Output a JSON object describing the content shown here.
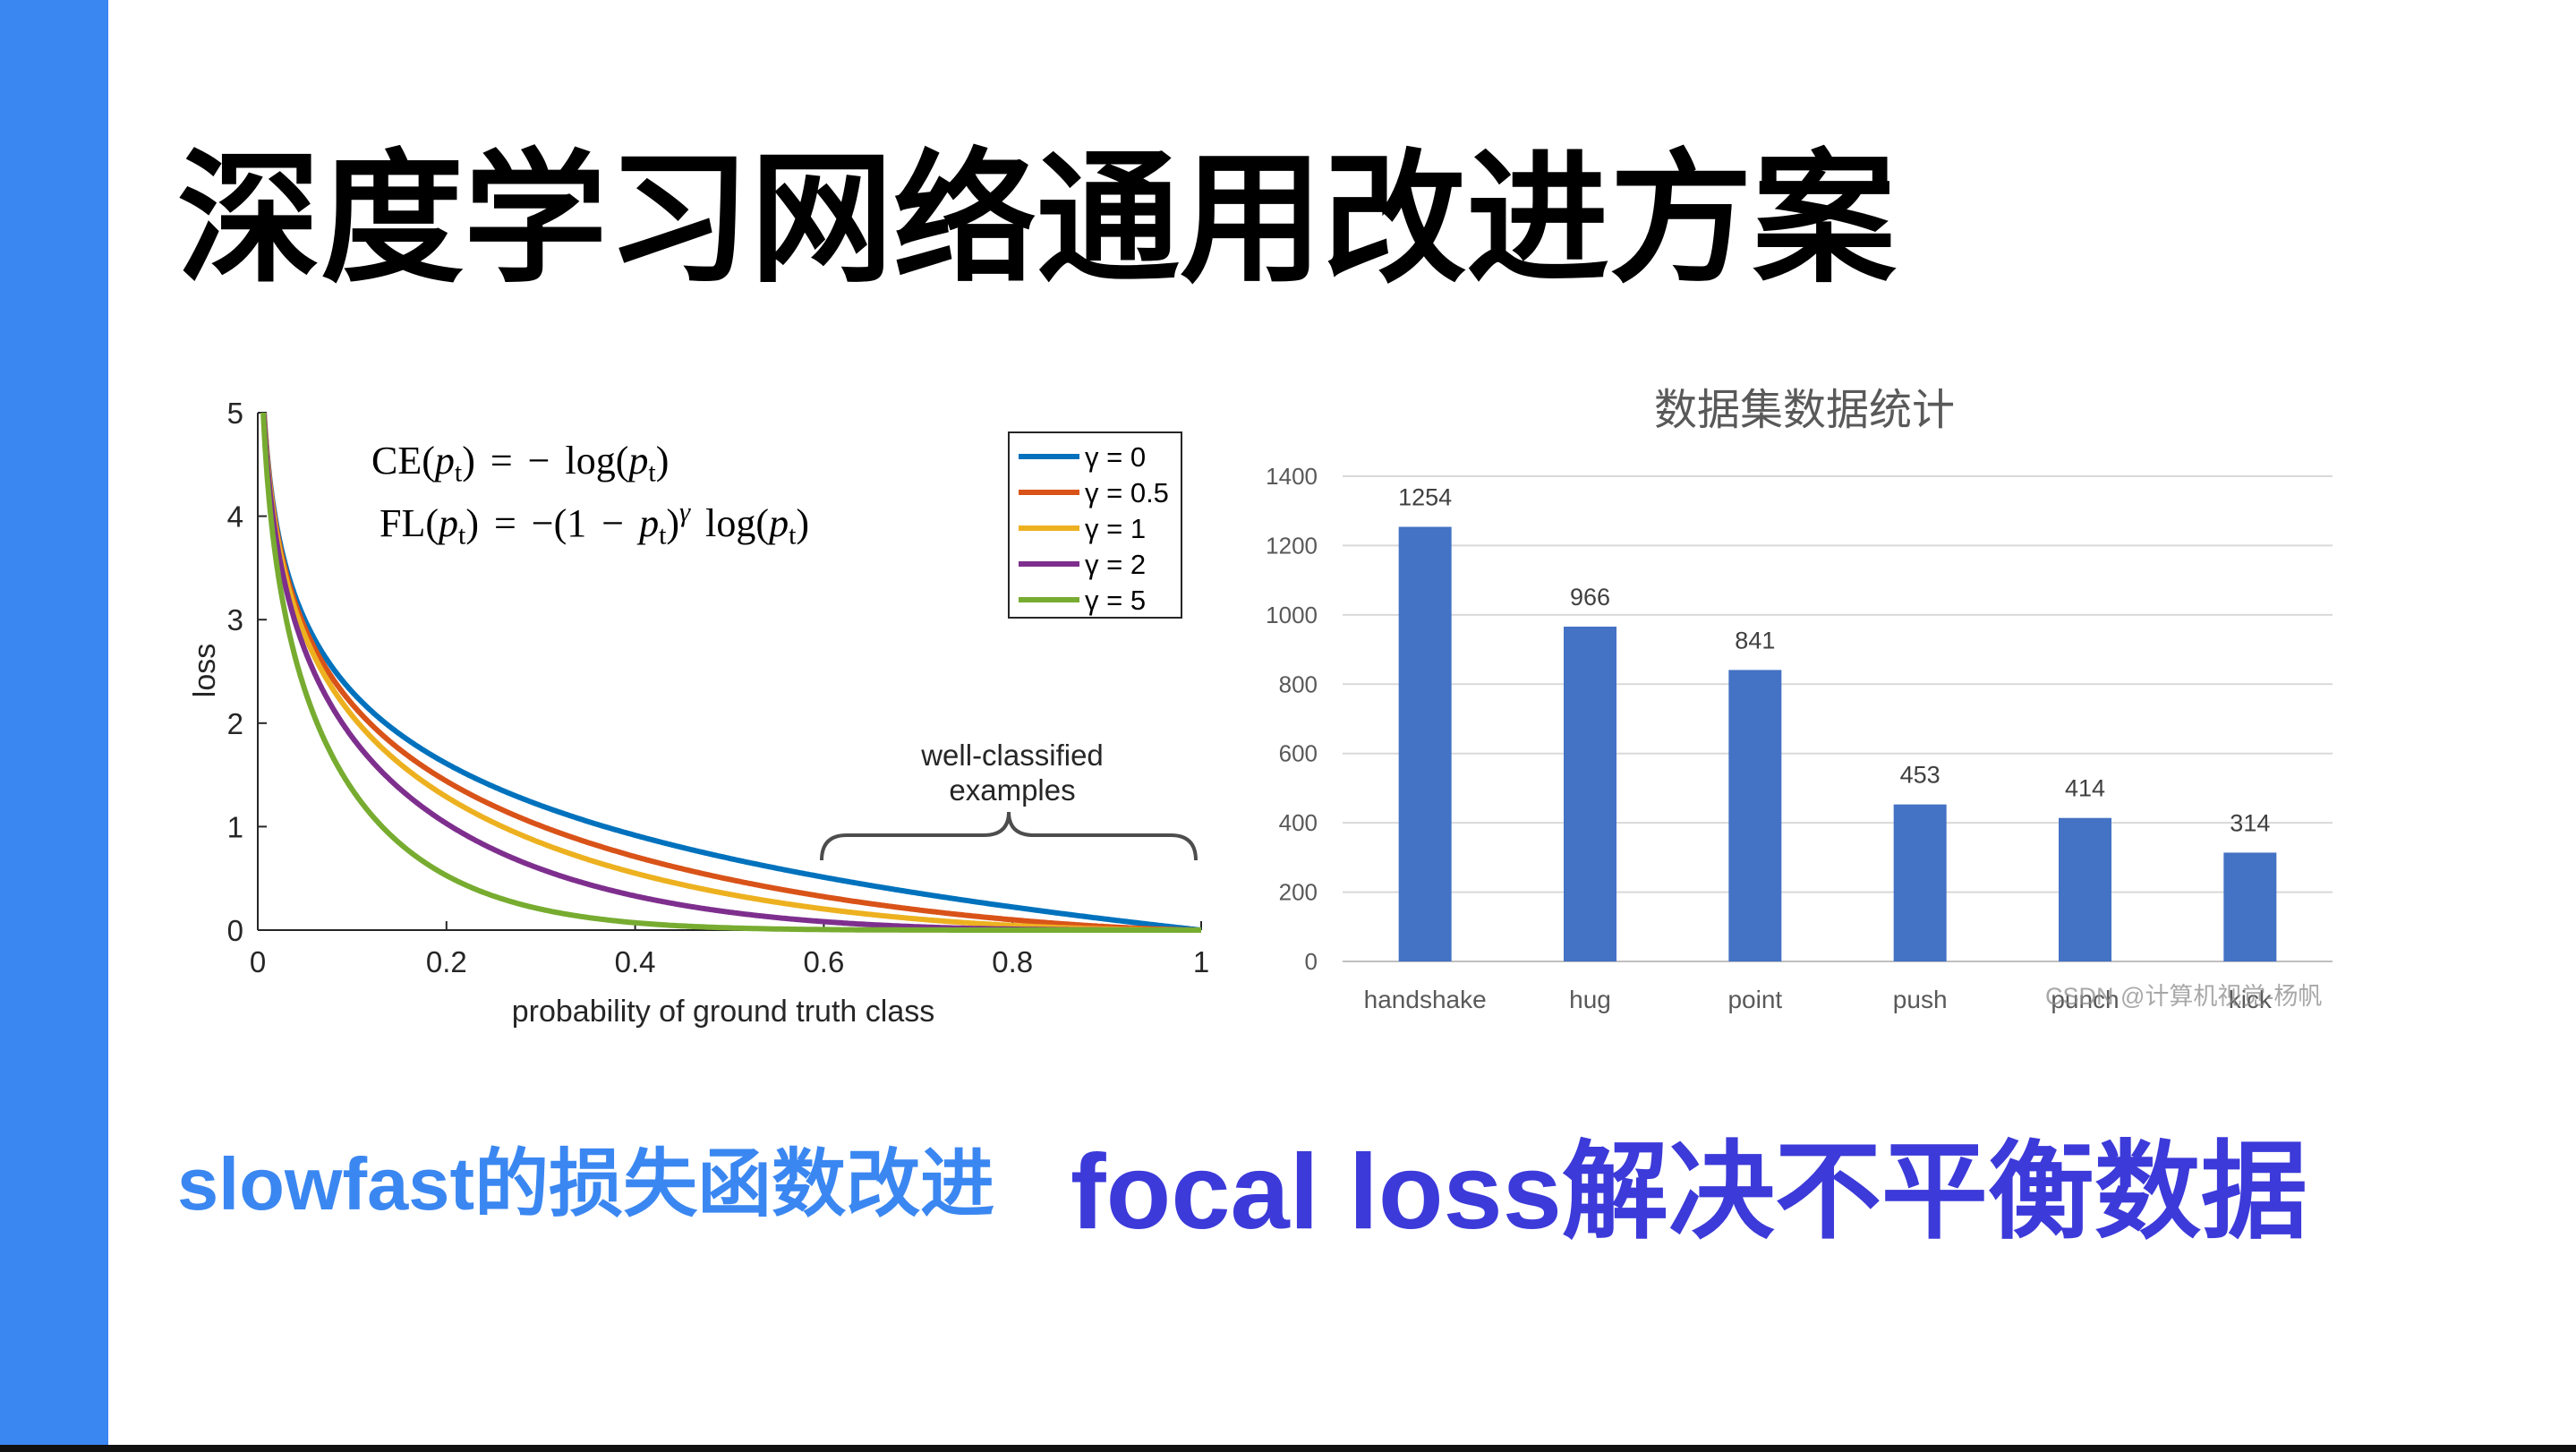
{
  "slide": {
    "title": "深度学习网络通用改进方案",
    "caption_left": "slowfast的损失函数改进",
    "caption_right": "focal loss解决不平衡数据",
    "watermark": "CSDN @计算机视觉-杨帆",
    "colors": {
      "accent_bar": "#3b87f1",
      "caption_left": "#3b87f1",
      "caption_right": "#3c3ad9",
      "bottom_rule": "#111111"
    }
  },
  "chart_data": [
    {
      "type": "line",
      "xlabel": "probability of ground truth class",
      "ylabel": "loss",
      "xlim": [
        0,
        1
      ],
      "ylim": [
        0,
        5
      ],
      "xticks": [
        0,
        0.2,
        0.4,
        0.6,
        0.8,
        1
      ],
      "yticks": [
        0,
        1,
        2,
        3,
        4,
        5
      ],
      "grid": false,
      "legend_position": "top-right",
      "formulas": {
        "ce": [
          "CE(",
          "p",
          "t",
          ") = − log(",
          "p",
          "t",
          ")"
        ],
        "fl": [
          "FL(",
          "p",
          "t",
          ") = −(1 − ",
          "p",
          "t",
          ")",
          "γ",
          " log(",
          "p",
          "t",
          ")"
        ]
      },
      "annotation": [
        "well-classified",
        "examples"
      ],
      "series": [
        {
          "name": "γ = 0",
          "gamma": 0,
          "color": "#0072bd"
        },
        {
          "name": "γ = 0.5",
          "gamma": 0.5,
          "color": "#d95319"
        },
        {
          "name": "γ = 1",
          "gamma": 1,
          "color": "#edb120"
        },
        {
          "name": "γ = 2",
          "gamma": 2,
          "color": "#7e2f8e"
        },
        {
          "name": "γ = 5",
          "gamma": 5,
          "color": "#77ac30"
        }
      ]
    },
    {
      "type": "bar",
      "title": "数据集数据统计",
      "categories": [
        "handshake",
        "hug",
        "point",
        "push",
        "punch",
        "kick"
      ],
      "values": [
        1254,
        966,
        841,
        453,
        414,
        314
      ],
      "ylim": [
        0,
        1400
      ],
      "yticks": [
        0,
        200,
        400,
        600,
        800,
        1000,
        1200,
        1400
      ],
      "grid": true,
      "data_labels": true,
      "bar_color": "#4472c4"
    }
  ]
}
